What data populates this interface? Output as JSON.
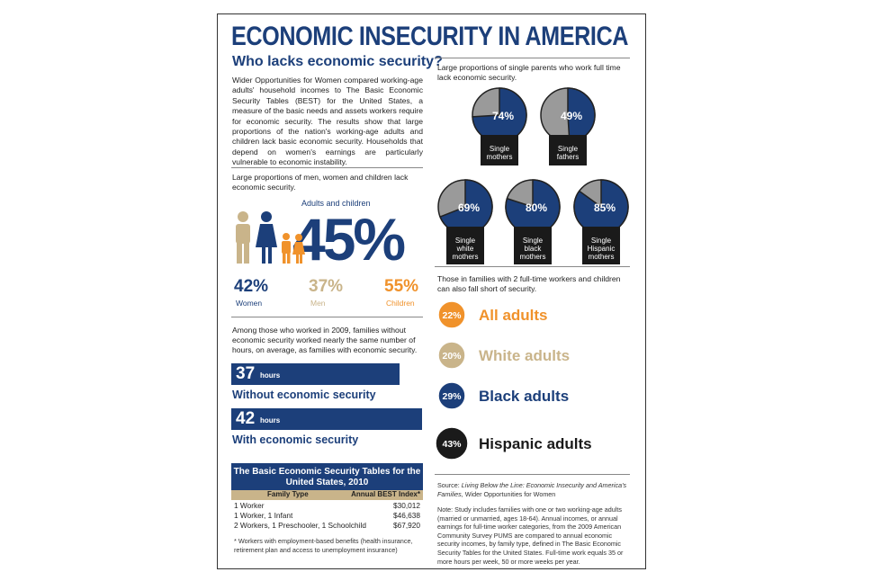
{
  "title": "ECONOMIC INSECURITY IN AMERICA",
  "subtitle": "Who lacks economic security?",
  "intro": "Wider Opportunities for Women compared working-age adults' household incomes to The Basic Economic Security Tables (BEST) for the United States, a measure of the basic needs and assets workers require for economic security. The results show that large proportions of the nation's working-age adults and children lack basic economic security. Households that depend on women's earnings are particularly vulnerable to economic instability.",
  "population": {
    "caption": "Large proportions of men, women and children lack economic security.",
    "headline_label": "Adults and children",
    "headline_value": 45,
    "headline_value_label": "45%",
    "groups": [
      "Women",
      "Men",
      "Children"
    ],
    "values": [
      42,
      37,
      55
    ],
    "value_labels": [
      "42%",
      "37%",
      "55%"
    ],
    "colors": [
      "#1c3f7a",
      "#c9b48a",
      "#f0922b"
    ]
  },
  "hours": {
    "caption": "Among those who worked in 2009, families without economic security worked nearly the same number of hours, on average, as families with economic security.",
    "values": [
      37,
      42
    ],
    "unit": "hours",
    "labels": [
      "Without economic security",
      "With economic security"
    ],
    "color": "#1c3f7a"
  },
  "best_table": {
    "title": "The Basic Economic Security Tables for the United States, 2010",
    "columns": [
      "Family Type",
      "Annual BEST Index*"
    ],
    "rows": [
      [
        "1 Worker",
        "$30,012"
      ],
      [
        "1 Worker, 1 Infant",
        "$46,638"
      ],
      [
        "2 Workers, 1 Preschooler, 1 Schoolchild",
        "$67,920"
      ]
    ],
    "footnote": "* Workers with employment-based benefits (health insurance, retirement plan and access to unemployment insurance)"
  },
  "single_parents": {
    "caption": "Large proportions of single parents who work full time lack economic security.",
    "groups": [
      "Single mothers",
      "Single fathers",
      "Single white mothers",
      "Single black mothers",
      "Single Hispanic mothers"
    ],
    "values": [
      74,
      49,
      69,
      80,
      85
    ],
    "value_labels": [
      "74%",
      "49%",
      "69%",
      "80%",
      "85%"
    ],
    "color": "#1c3f7a"
  },
  "two_workers": {
    "caption": "Those in families with 2 full-time workers and children can also fall short of security.",
    "groups": [
      "All adults",
      "White adults",
      "Black adults",
      "Hispanic adults"
    ],
    "values": [
      22,
      20,
      29,
      43
    ],
    "value_labels": [
      "22%",
      "20%",
      "29%",
      "43%"
    ],
    "colors": [
      "#f0922b",
      "#c9b48a",
      "#1c3f7a",
      "#1a1a1a"
    ]
  },
  "source": {
    "prefix": "Source:",
    "title": "Living Below the Line: Economic Insecurity and America's Families,",
    "org": "Wider Opportunities for Women"
  },
  "note": "Note: Study includes families with one or two working-age adults (married or unmarried, ages 18-64). Annual incomes, or annual earnings for full-time worker categories, from the 2009 American Community Survey PUMS are compared to annual economic security incomes, by family type, defined in The Basic Economic Security Tables for the United States. Full-time work equals 35 or more hours per week, 50 or more weeks per year."
}
